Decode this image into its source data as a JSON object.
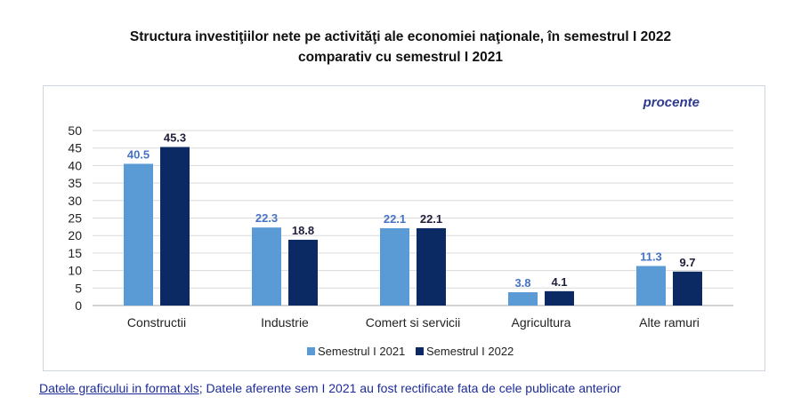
{
  "chart_data": {
    "type": "bar",
    "title_line1": "Structura investiţiilor nete pe activităţi ale economiei naţionale, în semestrul I 2022",
    "title_line2": "comparativ cu semestrul I 2021",
    "unit_label": "procente",
    "categories": [
      "Constructii",
      "Industrie",
      "Comert si servicii",
      "Agricultura",
      "Alte ramuri"
    ],
    "series": [
      {
        "name": "Semestrul I 2021",
        "values": [
          40.5,
          22.3,
          22.1,
          3.8,
          11.3
        ],
        "color": "#5b9bd5",
        "label_color": "#4472c4"
      },
      {
        "name": "Semestrul I 2022",
        "values": [
          45.3,
          18.8,
          22.1,
          4.1,
          9.7
        ],
        "color": "#0b2a63",
        "label_color": "#1f1f3a"
      }
    ],
    "ylim": [
      0,
      50
    ],
    "yticks": [
      "0",
      "5",
      "10",
      "15",
      "20",
      "25",
      "30",
      "35",
      "40",
      "45",
      "50"
    ],
    "grid": true,
    "legend_position": "bottom"
  },
  "footer": {
    "link_text": "Datele graficului in format xls",
    "note": "; Datele aferente sem I 2021 au fost rectificate fata de cele publicate anterior"
  }
}
